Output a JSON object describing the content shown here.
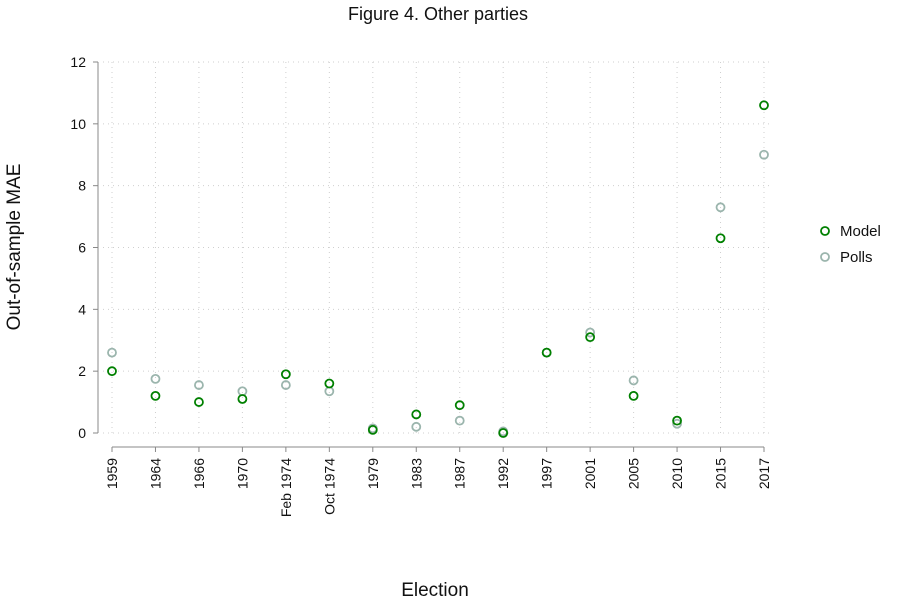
{
  "chart_data": {
    "type": "scatter",
    "title": "Figure 4. Other parties",
    "xlabel": "Election",
    "ylabel": "Out-of-sample MAE",
    "categories": [
      "1959",
      "1964",
      "1966",
      "1970",
      "Feb 1974",
      "Oct 1974",
      "1979",
      "1983",
      "1987",
      "1992",
      "1997",
      "2001",
      "2005",
      "2010",
      "2015",
      "2017"
    ],
    "ylim": [
      0,
      12
    ],
    "yticks": [
      0,
      2,
      4,
      6,
      8,
      10,
      12
    ],
    "grid": true,
    "legend_position": "right",
    "series": [
      {
        "name": "Model",
        "color": "#008000",
        "marker": "hollow-circle",
        "values": [
          2.0,
          1.2,
          1.0,
          1.1,
          1.9,
          1.6,
          0.1,
          0.6,
          0.9,
          0.0,
          2.6,
          3.1,
          1.2,
          0.4,
          6.3,
          10.6
        ]
      },
      {
        "name": "Polls",
        "color": "#9bb5ad",
        "marker": "hollow-circle",
        "values": [
          2.6,
          1.75,
          1.55,
          1.35,
          1.55,
          1.35,
          0.15,
          0.2,
          0.4,
          0.05,
          2.6,
          3.25,
          1.7,
          0.3,
          7.3,
          9.0
        ]
      }
    ]
  }
}
